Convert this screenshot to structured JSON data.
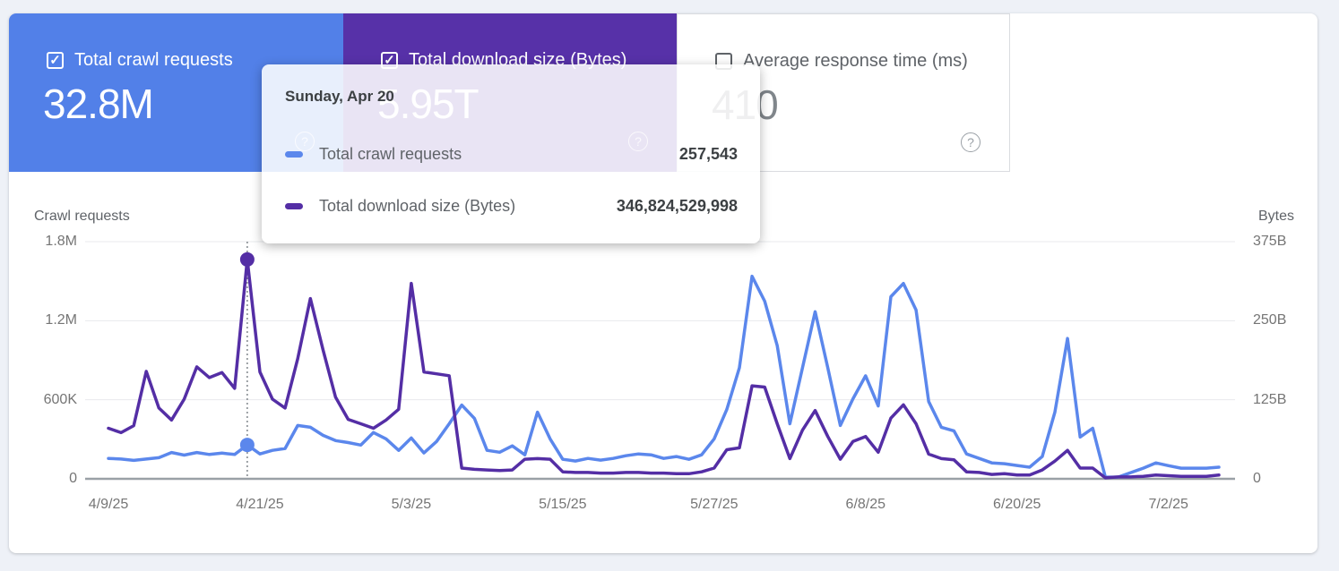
{
  "page": {
    "background": "#eef1f7"
  },
  "cards": [
    {
      "label": "Total crawl requests",
      "value": "32.8M",
      "checked": true,
      "bg": "#5280e8",
      "help_icon": "circled-question-mark"
    },
    {
      "label": "Total download size (Bytes)",
      "value": "5.95T",
      "checked": true,
      "bg": "#5731a8",
      "help_icon": "circled-question-mark"
    },
    {
      "label": "Average response time (ms)",
      "value": "410",
      "checked": false,
      "bg": "#ffffff",
      "help_icon": "circled-question-mark"
    }
  ],
  "tooltip": {
    "title": "Sunday, Apr 20",
    "rows": [
      {
        "label": "Total crawl requests",
        "value": "257,543",
        "color": "#5b87ec"
      },
      {
        "label": "Total download size (Bytes)",
        "value": "346,824,529,998",
        "color": "#542ea5"
      }
    ]
  },
  "chart_data": {
    "type": "line",
    "left_axis_title": "Crawl requests",
    "right_axis_title": "Bytes",
    "left_axis": {
      "tick_labels": [
        "0",
        "600K",
        "1.2M",
        "1.8M"
      ],
      "tick_values": [
        0,
        600000,
        1200000,
        1800000
      ],
      "max": 1800000
    },
    "right_axis": {
      "tick_labels": [
        "0",
        "125B",
        "250B",
        "375B"
      ],
      "tick_values": [
        0,
        125,
        250,
        375
      ],
      "max": 375
    },
    "x_tick_labels": [
      "4/9/25",
      "4/21/25",
      "5/3/25",
      "5/15/25",
      "5/27/25",
      "6/8/25",
      "6/20/25",
      "7/2/25"
    ],
    "x_tick_day_indices": [
      0,
      12,
      24,
      36,
      48,
      60,
      72,
      84
    ],
    "start_date": "4/9/25",
    "end_date": "7/6/25",
    "num_days": 89,
    "grid": true,
    "legend_position": "none",
    "highlight": {
      "day_index": 11,
      "date_label": "Sunday, Apr 20",
      "crawl_requests": 257543,
      "download_size_bytes": 346824529998,
      "marker": "dot-on-each-line-with-vertical-dotted-line"
    },
    "series": [
      {
        "name": "Total crawl requests",
        "axis": "left",
        "unit": "requests per day",
        "color": "#5b87ec",
        "values": [
          155000,
          150000,
          140000,
          150000,
          160000,
          200000,
          180000,
          200000,
          185000,
          195000,
          185000,
          257543,
          189000,
          216000,
          230000,
          405000,
          391000,
          330000,
          290000,
          275000,
          256000,
          351000,
          303000,
          216000,
          310000,
          196000,
          283000,
          418000,
          560000,
          459000,
          216000,
          202000,
          250000,
          182000,
          506000,
          303000,
          148000,
          135000,
          155000,
          142000,
          155000,
          175000,
          189000,
          182000,
          155000,
          169000,
          148000,
          182000,
          303000,
          526000,
          843000,
          1537000,
          1348000,
          1011000,
          418000,
          843000,
          1268000,
          843000,
          405000,
          607000,
          782000,
          553000,
          1382000,
          1483000,
          1281000,
          586000,
          391000,
          364000,
          189000,
          155000,
          121000,
          115000,
          101000,
          88000,
          169000,
          506000,
          1065000,
          317000,
          384000,
          13000,
          13000,
          47000,
          81000,
          121000,
          100000,
          81000,
          81000,
          81000,
          88000
        ]
      },
      {
        "name": "Total download size (Bytes)",
        "axis": "right",
        "unit": "billions of bytes per day",
        "color": "#542ea5",
        "values": [
          80,
          73,
          84,
          170,
          112,
          93,
          126,
          177,
          160,
          168,
          143,
          346.8,
          169,
          126,
          112,
          190,
          285,
          204,
          129,
          94,
          87,
          80,
          93,
          110,
          309,
          169,
          166,
          163,
          17,
          15,
          14,
          13,
          14,
          31,
          32,
          31,
          11,
          10,
          10,
          9,
          9,
          10,
          10,
          9,
          9,
          8,
          8,
          11,
          17,
          46,
          49,
          147,
          145,
          87,
          32,
          77,
          108,
          67,
          31,
          59,
          67,
          42,
          96,
          117,
          87,
          39,
          32,
          30,
          11,
          10,
          7,
          8,
          6,
          6,
          14,
          28,
          45,
          17,
          17,
          1.5,
          3,
          3,
          4,
          6,
          5,
          4,
          4,
          4,
          6
        ]
      }
    ],
    "colors": {
      "gridline": "#e8eaed",
      "baseline": "#9aa0a6",
      "hover_line": "#80868b"
    }
  }
}
